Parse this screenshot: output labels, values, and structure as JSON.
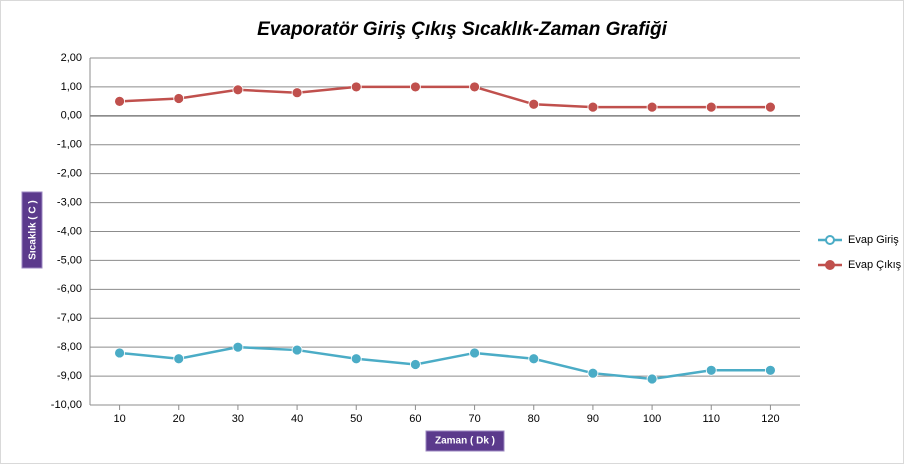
{
  "chart_data": {
    "type": "line",
    "title": "Evaporatör Giriş Çıkış Sıcaklık-Zaman Grafiği",
    "x_label": "Zaman ( Dk )",
    "y_label": "Sıcaklık ( C )",
    "x": [
      10,
      20,
      30,
      40,
      50,
      60,
      70,
      80,
      90,
      100,
      110,
      120
    ],
    "xlim": [
      5,
      125
    ],
    "xticks": [
      10,
      20,
      30,
      40,
      50,
      60,
      70,
      80,
      90,
      100,
      110,
      120
    ],
    "ylim": [
      -10,
      2
    ],
    "yticks": [
      {
        "value": 2,
        "label": "2,00"
      },
      {
        "value": 1,
        "label": "1,00"
      },
      {
        "value": 0,
        "label": "0,00"
      },
      {
        "value": -1,
        "label": "-1,00"
      },
      {
        "value": -2,
        "label": "-2,00"
      },
      {
        "value": -3,
        "label": "-3,00"
      },
      {
        "value": -4,
        "label": "-4,00"
      },
      {
        "value": -5,
        "label": "-5,00"
      },
      {
        "value": -6,
        "label": "-6,00"
      },
      {
        "value": -7,
        "label": "-7,00"
      },
      {
        "value": -8,
        "label": "-8,00"
      },
      {
        "value": -9,
        "label": "-9,00"
      },
      {
        "value": -10,
        "label": "-10,00"
      }
    ],
    "grid": true,
    "legend": "right",
    "series": [
      {
        "name": "Evap Giriş",
        "color": "#4bacc6",
        "values": [
          -8.2,
          -8.4,
          -8.0,
          -8.1,
          -8.4,
          -8.6,
          -8.2,
          -8.4,
          -8.9,
          -9.1,
          -8.8,
          -8.8
        ]
      },
      {
        "name": "Evap Çıkış",
        "color": "#c0504d",
        "values": [
          0.5,
          0.6,
          0.9,
          0.8,
          1.0,
          1.0,
          1.0,
          0.4,
          0.3,
          0.3,
          0.3,
          0.3
        ]
      }
    ]
  }
}
